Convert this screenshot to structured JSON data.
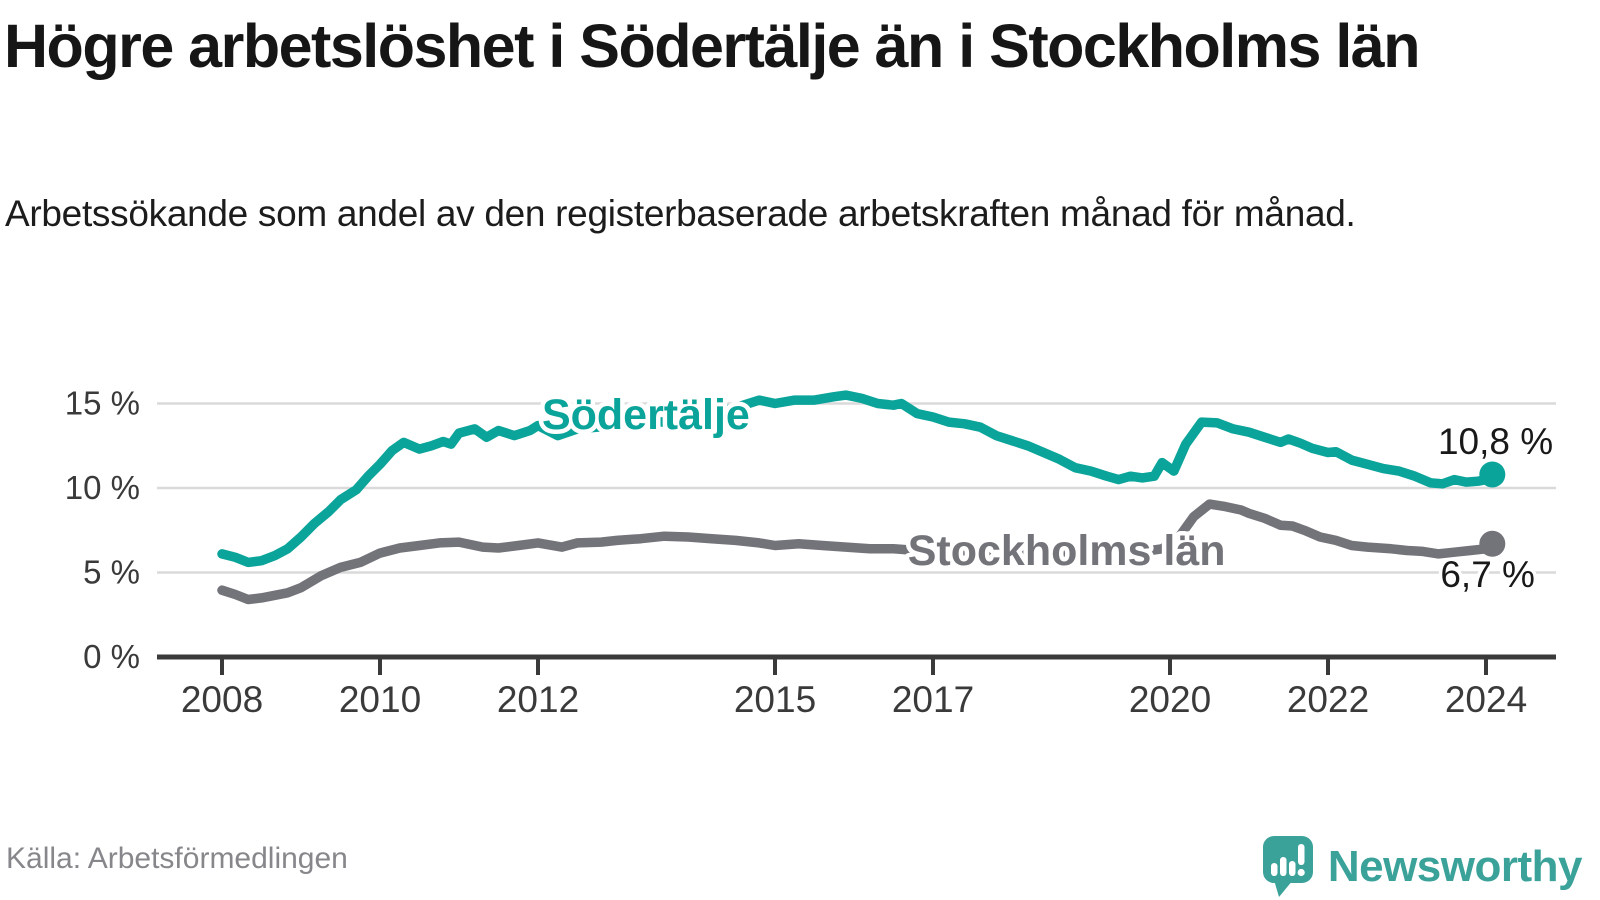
{
  "title": "Högre arbetslöshet i Södertälje än i Stockholms län",
  "subtitle": "Arbetssökande som andel av den registerbaserade arbetskraften månad för månad.",
  "source": "Källa: Arbetsförmedlingen",
  "logo": {
    "text": "Newsworthy"
  },
  "colors": {
    "sodertalje": "#0ba49a",
    "stockholm": "#73737a",
    "grid": "#dadada",
    "axis": "#3a3a3a",
    "tick_text": "#3a3a3a",
    "value_label": "#191919",
    "halo": "#ffffff",
    "logo_teal": "#3ba29a"
  },
  "chart_data": {
    "type": "line",
    "title": "Högre arbetslöshet i Södertälje än i Stockholms län",
    "xlabel": "",
    "ylabel": "",
    "grid": "horizontal",
    "xlim": [
      2007.2,
      2024.9
    ],
    "ylim": [
      0,
      16.5
    ],
    "x_ticks": [
      {
        "value": 2008,
        "label": "2008"
      },
      {
        "value": 2010,
        "label": "2010"
      },
      {
        "value": 2012,
        "label": "2012"
      },
      {
        "value": 2015,
        "label": "2015"
      },
      {
        "value": 2017,
        "label": "2017"
      },
      {
        "value": 2020,
        "label": "2020"
      },
      {
        "value": 2022,
        "label": "2022"
      },
      {
        "value": 2024,
        "label": "2024"
      }
    ],
    "y_ticks": [
      {
        "value": 0,
        "label": "0 %"
      },
      {
        "value": 5,
        "label": "5 %"
      },
      {
        "value": 10,
        "label": "10 %"
      },
      {
        "value": 15,
        "label": "15 %"
      }
    ],
    "series": [
      {
        "id": "sodertalje",
        "name": "Södertälje",
        "color": "#0ba49a",
        "end_dot": true,
        "inline_label": {
          "text": "Södertälje",
          "x": 2012.05,
          "y": 13.5,
          "anchor": "start"
        },
        "end_value_label": {
          "text": "10,8 %",
          "x": 2024.85,
          "y": 12.0,
          "anchor": "end"
        },
        "points": [
          [
            2008.0,
            6.1
          ],
          [
            2008.17,
            5.9
          ],
          [
            2008.33,
            5.6
          ],
          [
            2008.5,
            5.7
          ],
          [
            2008.67,
            6.0
          ],
          [
            2008.83,
            6.4
          ],
          [
            2009.0,
            7.1
          ],
          [
            2009.17,
            7.9
          ],
          [
            2009.35,
            8.6
          ],
          [
            2009.5,
            9.3
          ],
          [
            2009.7,
            9.9
          ],
          [
            2009.85,
            10.7
          ],
          [
            2010.0,
            11.4
          ],
          [
            2010.15,
            12.2
          ],
          [
            2010.3,
            12.7
          ],
          [
            2010.5,
            12.3
          ],
          [
            2010.65,
            12.5
          ],
          [
            2010.8,
            12.75
          ],
          [
            2010.9,
            12.6
          ],
          [
            2011.0,
            13.25
          ],
          [
            2011.2,
            13.5
          ],
          [
            2011.35,
            13.0
          ],
          [
            2011.5,
            13.4
          ],
          [
            2011.7,
            13.1
          ],
          [
            2011.9,
            13.4
          ],
          [
            2012.0,
            13.7
          ],
          [
            2012.25,
            13.1
          ],
          [
            2012.5,
            13.5
          ],
          [
            2012.75,
            13.6
          ],
          [
            2013.0,
            13.7
          ],
          [
            2013.3,
            14.0
          ],
          [
            2013.6,
            13.9
          ],
          [
            2014.0,
            14.1
          ],
          [
            2014.3,
            14.5
          ],
          [
            2014.6,
            14.9
          ],
          [
            2014.8,
            15.2
          ],
          [
            2015.0,
            15.0
          ],
          [
            2015.25,
            15.2
          ],
          [
            2015.5,
            15.2
          ],
          [
            2015.75,
            15.4
          ],
          [
            2015.9,
            15.5
          ],
          [
            2016.1,
            15.3
          ],
          [
            2016.3,
            15.0
          ],
          [
            2016.5,
            14.9
          ],
          [
            2016.6,
            15.0
          ],
          [
            2016.8,
            14.4
          ],
          [
            2017.0,
            14.2
          ],
          [
            2017.2,
            13.9
          ],
          [
            2017.4,
            13.8
          ],
          [
            2017.6,
            13.6
          ],
          [
            2017.8,
            13.1
          ],
          [
            2018.0,
            12.8
          ],
          [
            2018.2,
            12.5
          ],
          [
            2018.4,
            12.1
          ],
          [
            2018.6,
            11.7
          ],
          [
            2018.8,
            11.2
          ],
          [
            2019.0,
            11.0
          ],
          [
            2019.2,
            10.7
          ],
          [
            2019.35,
            10.5
          ],
          [
            2019.5,
            10.7
          ],
          [
            2019.65,
            10.6
          ],
          [
            2019.8,
            10.7
          ],
          [
            2019.9,
            11.5
          ],
          [
            2020.05,
            11.0
          ],
          [
            2020.2,
            12.6
          ],
          [
            2020.4,
            13.9
          ],
          [
            2020.6,
            13.85
          ],
          [
            2020.8,
            13.5
          ],
          [
            2021.0,
            13.3
          ],
          [
            2021.2,
            13.0
          ],
          [
            2021.4,
            12.7
          ],
          [
            2021.5,
            12.9
          ],
          [
            2021.65,
            12.65
          ],
          [
            2021.8,
            12.35
          ],
          [
            2022.0,
            12.1
          ],
          [
            2022.1,
            12.15
          ],
          [
            2022.3,
            11.65
          ],
          [
            2022.5,
            11.4
          ],
          [
            2022.7,
            11.15
          ],
          [
            2022.9,
            11.0
          ],
          [
            2023.1,
            10.7
          ],
          [
            2023.3,
            10.3
          ],
          [
            2023.45,
            10.25
          ],
          [
            2023.6,
            10.5
          ],
          [
            2023.75,
            10.35
          ],
          [
            2023.9,
            10.4
          ],
          [
            2024.0,
            10.5
          ],
          [
            2024.08,
            10.8
          ]
        ]
      },
      {
        "id": "stockholm",
        "name": "Stockholms län",
        "color": "#73737a",
        "end_dot": true,
        "inline_label": {
          "text": "Stockholms län",
          "x": 2016.68,
          "y": 5.45,
          "anchor": "start"
        },
        "end_value_label": {
          "text": "6,7 %",
          "x": 2024.62,
          "y": 4.15,
          "anchor": "end"
        },
        "points": [
          [
            2008.0,
            3.95
          ],
          [
            2008.17,
            3.7
          ],
          [
            2008.33,
            3.4
          ],
          [
            2008.5,
            3.5
          ],
          [
            2008.67,
            3.65
          ],
          [
            2008.83,
            3.8
          ],
          [
            2009.0,
            4.1
          ],
          [
            2009.25,
            4.8
          ],
          [
            2009.5,
            5.3
          ],
          [
            2009.75,
            5.6
          ],
          [
            2010.0,
            6.15
          ],
          [
            2010.25,
            6.45
          ],
          [
            2010.5,
            6.6
          ],
          [
            2010.75,
            6.75
          ],
          [
            2011.0,
            6.8
          ],
          [
            2011.3,
            6.5
          ],
          [
            2011.5,
            6.45
          ],
          [
            2011.75,
            6.6
          ],
          [
            2012.0,
            6.75
          ],
          [
            2012.3,
            6.5
          ],
          [
            2012.5,
            6.75
          ],
          [
            2012.8,
            6.8
          ],
          [
            2013.0,
            6.9
          ],
          [
            2013.3,
            7.0
          ],
          [
            2013.6,
            7.15
          ],
          [
            2013.9,
            7.1
          ],
          [
            2014.2,
            7.0
          ],
          [
            2014.5,
            6.9
          ],
          [
            2014.8,
            6.75
          ],
          [
            2015.0,
            6.6
          ],
          [
            2015.3,
            6.7
          ],
          [
            2015.6,
            6.6
          ],
          [
            2015.9,
            6.5
          ],
          [
            2016.2,
            6.4
          ],
          [
            2016.5,
            6.4
          ],
          [
            2016.8,
            6.3
          ],
          [
            2017.0,
            6.35
          ],
          [
            2017.3,
            6.3
          ],
          [
            2017.6,
            6.25
          ],
          [
            2017.9,
            6.2
          ],
          [
            2018.2,
            6.15
          ],
          [
            2018.5,
            6.2
          ],
          [
            2018.8,
            6.1
          ],
          [
            2019.0,
            6.1
          ],
          [
            2019.3,
            6.15
          ],
          [
            2019.6,
            6.2
          ],
          [
            2019.9,
            6.4
          ],
          [
            2020.1,
            7.0
          ],
          [
            2020.3,
            8.3
          ],
          [
            2020.5,
            9.05
          ],
          [
            2020.7,
            8.9
          ],
          [
            2020.9,
            8.7
          ],
          [
            2021.0,
            8.5
          ],
          [
            2021.2,
            8.2
          ],
          [
            2021.4,
            7.8
          ],
          [
            2021.55,
            7.75
          ],
          [
            2021.7,
            7.5
          ],
          [
            2021.9,
            7.1
          ],
          [
            2022.1,
            6.9
          ],
          [
            2022.3,
            6.6
          ],
          [
            2022.5,
            6.5
          ],
          [
            2022.8,
            6.4
          ],
          [
            2023.0,
            6.3
          ],
          [
            2023.2,
            6.25
          ],
          [
            2023.4,
            6.1
          ],
          [
            2023.6,
            6.2
          ],
          [
            2023.8,
            6.3
          ],
          [
            2024.0,
            6.4
          ],
          [
            2024.08,
            6.7
          ]
        ]
      }
    ]
  }
}
